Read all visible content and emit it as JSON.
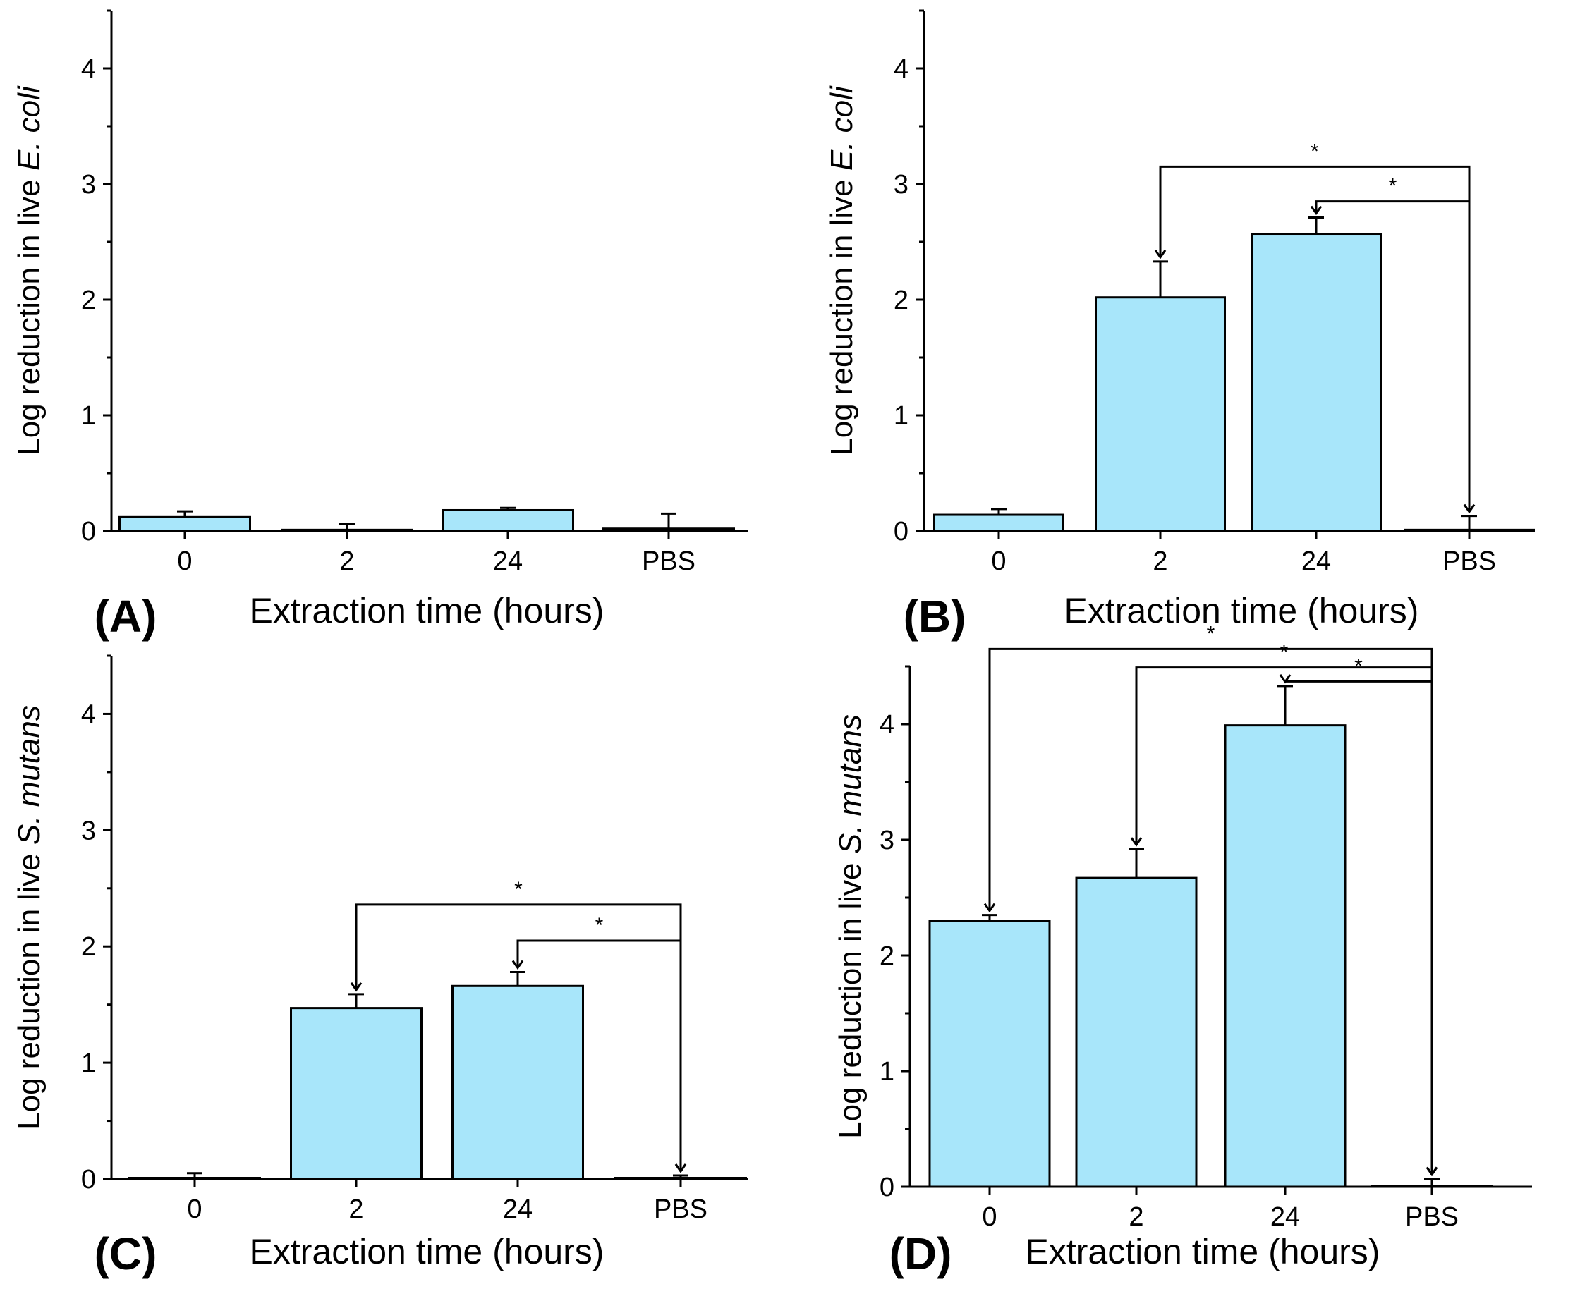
{
  "chart_data": [
    {
      "type": "bar",
      "panel_label": "(A)",
      "categories": [
        "0",
        "2",
        "24",
        "PBS"
      ],
      "values": [
        0.12,
        0.01,
        0.18,
        0.02
      ],
      "errors": [
        0.05,
        0.05,
        0.02,
        0.13
      ],
      "xlabel": "Extraction time (hours)",
      "ylabel_prefix": "Log reduction in live ",
      "ylabel_species": "E. coli",
      "ylim": [
        0,
        4.5
      ],
      "yticks": [
        "0",
        "1",
        "2",
        "3",
        "4"
      ],
      "significance": []
    },
    {
      "type": "bar",
      "panel_label": "(B)",
      "categories": [
        "0",
        "2",
        "24",
        "PBS"
      ],
      "values": [
        0.14,
        2.02,
        2.57,
        0.01
      ],
      "errors": [
        0.05,
        0.31,
        0.14,
        0.12
      ],
      "xlabel": "Extraction time (hours)",
      "ylabel_prefix": "Log reduction in live ",
      "ylabel_species": "E. coli",
      "ylim": [
        0,
        4.5
      ],
      "yticks": [
        "0",
        "1",
        "2",
        "3",
        "4"
      ],
      "significance": [
        {
          "from": "2",
          "to": "PBS",
          "level": 3.15,
          "label": "*"
        },
        {
          "from": "24",
          "to": "PBS",
          "level": 2.85,
          "label": "*"
        }
      ]
    },
    {
      "type": "bar",
      "panel_label": "(C)",
      "categories": [
        "0",
        "2",
        "24",
        "PBS"
      ],
      "values": [
        0.0,
        1.47,
        1.66,
        0.0
      ],
      "errors": [
        0.05,
        0.12,
        0.12,
        0.03
      ],
      "xlabel": "Extraction time (hours)",
      "ylabel_prefix": "Log reduction in live ",
      "ylabel_species": "S. mutans",
      "ylim": [
        0,
        4.5
      ],
      "yticks": [
        "0",
        "1",
        "2",
        "3",
        "4"
      ],
      "significance": [
        {
          "from": "2",
          "to": "PBS",
          "level": 2.36,
          "label": "*"
        },
        {
          "from": "24",
          "to": "PBS",
          "level": 2.05,
          "label": "*"
        }
      ]
    },
    {
      "type": "bar",
      "panel_label": "(D)",
      "categories": [
        "0",
        "2",
        "24",
        "PBS"
      ],
      "values": [
        2.3,
        2.67,
        3.99,
        0.0
      ],
      "errors": [
        0.05,
        0.25,
        0.34,
        0.07
      ],
      "xlabel": "Extraction time (hours)",
      "ylabel_prefix": "Log reduction in live ",
      "ylabel_species": "S. mutans",
      "ylim": [
        0,
        4.5
      ],
      "yticks": [
        "0",
        "1",
        "2",
        "3",
        "4"
      ],
      "significance": [
        {
          "from": "0",
          "to": "PBS",
          "level": 4.65,
          "label": "*"
        },
        {
          "from": "2",
          "to": "PBS",
          "level": 4.49,
          "label": "*"
        },
        {
          "from": "24",
          "to": "PBS",
          "level": 4.37,
          "label": "*"
        }
      ]
    }
  ]
}
